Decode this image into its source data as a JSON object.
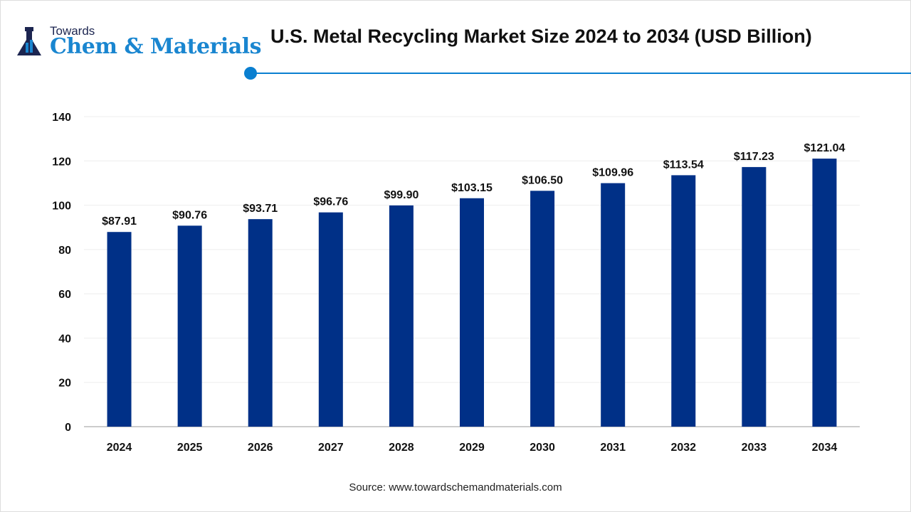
{
  "logo": {
    "top": "Towards",
    "main": "Chem & Materials"
  },
  "colors": {
    "bar": "#003087",
    "accent": "#0a7fd0"
  },
  "source": "Source: www.towardschemandmaterials.com",
  "chart_data": {
    "type": "bar",
    "title": "U.S. Metal Recycling Market Size 2024 to 2034 (USD Billion)",
    "xlabel": "",
    "ylabel": "",
    "categories": [
      "2024",
      "2025",
      "2026",
      "2027",
      "2028",
      "2029",
      "2030",
      "2031",
      "2032",
      "2033",
      "2034"
    ],
    "values": [
      87.91,
      90.76,
      93.71,
      96.76,
      99.9,
      103.15,
      106.5,
      109.96,
      113.54,
      117.23,
      121.04
    ],
    "data_labels": [
      "$87.91",
      "$90.76",
      "$93.71",
      "$96.76",
      "$99.90",
      "$103.15",
      "$106.50",
      "$109.96",
      "$113.54",
      "$117.23",
      "$121.04"
    ],
    "yticks": [
      0,
      20,
      40,
      60,
      80,
      100,
      120,
      140
    ],
    "ylim": [
      0,
      140
    ],
    "grid": true,
    "legend": "none"
  }
}
